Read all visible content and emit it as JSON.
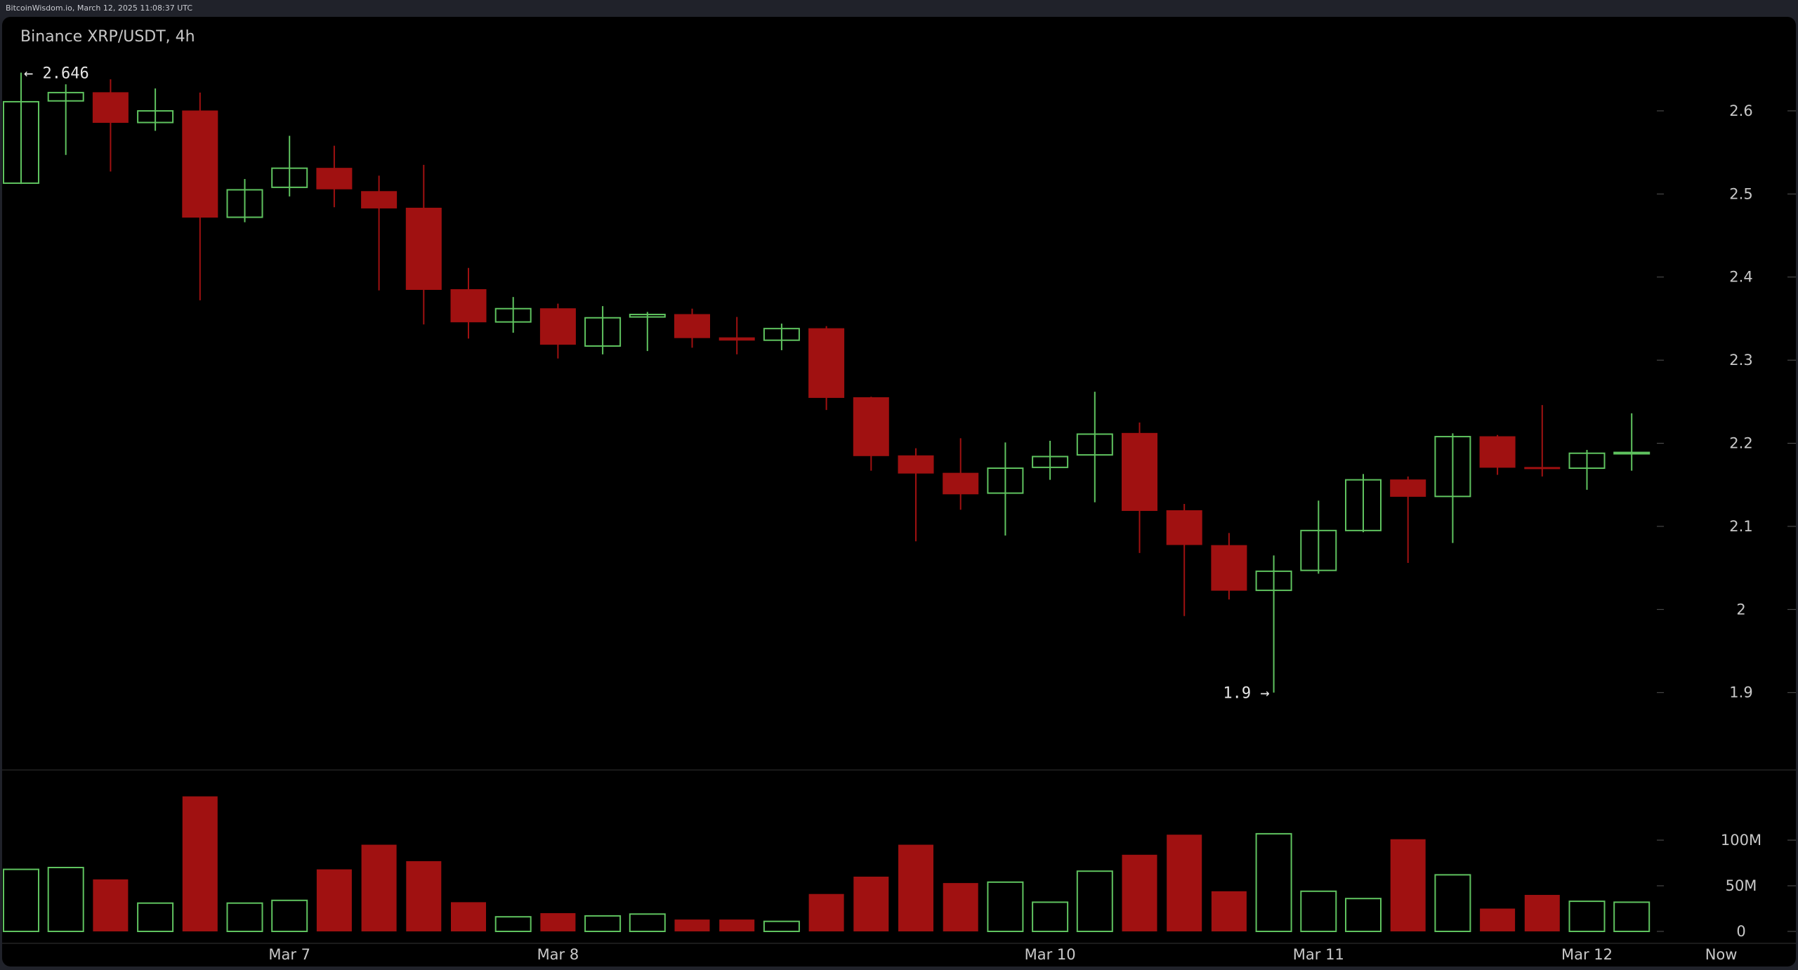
{
  "topbar": {
    "text": "BitcoinWisdom.io, March 12, 2025 11:08:37 UTC"
  },
  "colors": {
    "background": "#000000",
    "up_candle": "#5fc35f",
    "down_candle": "#a01111",
    "axis_text": "#c8c8c8",
    "separator": "#333333"
  },
  "chart_data": {
    "type": "candlestick",
    "title": "Binance XRP/USDT, 4h",
    "price_ylim": [
      1.855,
      2.665
    ],
    "price_ticks": [
      "2.6",
      "2.5",
      "2.4",
      "2.3",
      "2.2",
      "2.1",
      "2",
      "1.9"
    ],
    "volume_ylim": [
      0,
      170
    ],
    "volume_ticks": [
      "100M",
      "50M",
      "0"
    ],
    "x_labels": [
      {
        "label": "Mar 7",
        "index": 6
      },
      {
        "label": "Mar 8",
        "index": 12
      },
      {
        "label": "Mar 10",
        "index": 23
      },
      {
        "label": "Mar 11",
        "index": 29
      },
      {
        "label": "Mar 12",
        "index": 35
      },
      {
        "label": "Now",
        "index": 38
      }
    ],
    "annotations": [
      {
        "text": "← 2.646",
        "index": 0,
        "value": 2.646,
        "side": "right"
      },
      {
        "text": "1.9 →",
        "index": 28,
        "value": 1.9,
        "side": "left"
      }
    ],
    "candles": [
      {
        "o": 2.513,
        "h": 2.646,
        "l": 2.512,
        "c": 2.611,
        "v": 68
      },
      {
        "o": 2.612,
        "h": 2.632,
        "l": 2.547,
        "c": 2.622,
        "v": 70
      },
      {
        "o": 2.622,
        "h": 2.638,
        "l": 2.527,
        "c": 2.586,
        "v": 57
      },
      {
        "o": 2.586,
        "h": 2.627,
        "l": 2.576,
        "c": 2.6,
        "v": 31
      },
      {
        "o": 2.6,
        "h": 2.622,
        "l": 2.372,
        "c": 2.472,
        "v": 148
      },
      {
        "o": 2.472,
        "h": 2.518,
        "l": 2.466,
        "c": 2.505,
        "v": 31
      },
      {
        "o": 2.508,
        "h": 2.57,
        "l": 2.497,
        "c": 2.531,
        "v": 34
      },
      {
        "o": 2.531,
        "h": 2.558,
        "l": 2.484,
        "c": 2.506,
        "v": 68
      },
      {
        "o": 2.503,
        "h": 2.522,
        "l": 2.384,
        "c": 2.483,
        "v": 95
      },
      {
        "o": 2.483,
        "h": 2.535,
        "l": 2.343,
        "c": 2.385,
        "v": 77
      },
      {
        "o": 2.385,
        "h": 2.411,
        "l": 2.326,
        "c": 2.346,
        "v": 32
      },
      {
        "o": 2.346,
        "h": 2.376,
        "l": 2.333,
        "c": 2.362,
        "v": 16
      },
      {
        "o": 2.362,
        "h": 2.368,
        "l": 2.302,
        "c": 2.319,
        "v": 20
      },
      {
        "o": 2.317,
        "h": 2.365,
        "l": 2.307,
        "c": 2.351,
        "v": 17
      },
      {
        "o": 2.352,
        "h": 2.358,
        "l": 2.311,
        "c": 2.355,
        "v": 19
      },
      {
        "o": 2.355,
        "h": 2.362,
        "l": 2.315,
        "c": 2.327,
        "v": 13
      },
      {
        "o": 2.327,
        "h": 2.352,
        "l": 2.307,
        "c": 2.324,
        "v": 13
      },
      {
        "o": 2.324,
        "h": 2.344,
        "l": 2.312,
        "c": 2.338,
        "v": 11
      },
      {
        "o": 2.338,
        "h": 2.341,
        "l": 2.24,
        "c": 2.255,
        "v": 41
      },
      {
        "o": 2.255,
        "h": 2.256,
        "l": 2.167,
        "c": 2.185,
        "v": 60
      },
      {
        "o": 2.185,
        "h": 2.194,
        "l": 2.082,
        "c": 2.164,
        "v": 95
      },
      {
        "o": 2.164,
        "h": 2.206,
        "l": 2.12,
        "c": 2.139,
        "v": 53
      },
      {
        "o": 2.14,
        "h": 2.201,
        "l": 2.089,
        "c": 2.17,
        "v": 54
      },
      {
        "o": 2.171,
        "h": 2.203,
        "l": 2.156,
        "c": 2.184,
        "v": 32
      },
      {
        "o": 2.186,
        "h": 2.262,
        "l": 2.129,
        "c": 2.211,
        "v": 66
      },
      {
        "o": 2.212,
        "h": 2.225,
        "l": 2.068,
        "c": 2.119,
        "v": 84
      },
      {
        "o": 2.119,
        "h": 2.127,
        "l": 1.992,
        "c": 2.078,
        "v": 106
      },
      {
        "o": 2.077,
        "h": 2.092,
        "l": 2.012,
        "c": 2.023,
        "v": 44
      },
      {
        "o": 2.023,
        "h": 2.065,
        "l": 1.9,
        "c": 2.046,
        "v": 107
      },
      {
        "o": 2.047,
        "h": 2.131,
        "l": 2.043,
        "c": 2.095,
        "v": 44
      },
      {
        "o": 2.095,
        "h": 2.163,
        "l": 2.093,
        "c": 2.156,
        "v": 36
      },
      {
        "o": 2.156,
        "h": 2.16,
        "l": 2.056,
        "c": 2.136,
        "v": 101
      },
      {
        "o": 2.136,
        "h": 2.212,
        "l": 2.08,
        "c": 2.208,
        "v": 62
      },
      {
        "o": 2.208,
        "h": 2.21,
        "l": 2.162,
        "c": 2.171,
        "v": 25
      },
      {
        "o": 2.171,
        "h": 2.246,
        "l": 2.16,
        "c": 2.17,
        "v": 40
      },
      {
        "o": 2.17,
        "h": 2.192,
        "l": 2.144,
        "c": 2.188,
        "v": 33
      },
      {
        "o": 2.188,
        "h": 2.236,
        "l": 2.167,
        "c": 2.189,
        "v": 32
      }
    ]
  }
}
